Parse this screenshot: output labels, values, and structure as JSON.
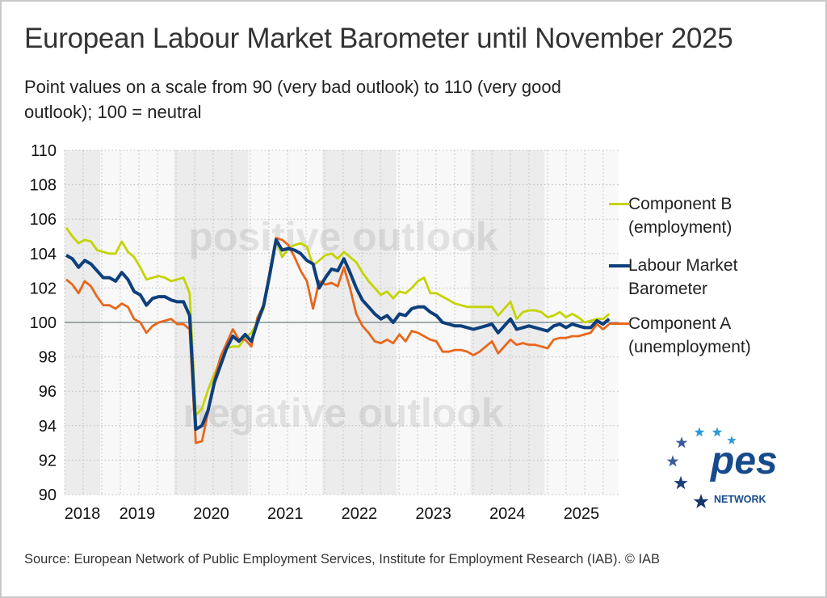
{
  "title": "European Labour Market Barometer until November 2025",
  "subtitle": "Point values on a scale from 90 (very bad outlook) to 110 (very good outlook); 100 = neutral",
  "source": "Source: European Network of Public Employment Services, Institute for Employment Research (IAB).  © IAB",
  "logo": {
    "text": "pes",
    "subtext": "NETWORK"
  },
  "chart_data": {
    "type": "line",
    "x_start": "2018-07",
    "x_end": "2025-11",
    "x_frequency": "monthly",
    "ylim": [
      90,
      110
    ],
    "yticks": [
      90,
      92,
      94,
      96,
      98,
      100,
      102,
      104,
      106,
      108,
      110
    ],
    "xtick_labels": [
      "2018",
      "2019",
      "2020",
      "2021",
      "2022",
      "2023",
      "2024",
      "2025"
    ],
    "reference_line": 100,
    "grid": true,
    "legend_position": "right",
    "annotations": {
      "positive": "positive outlook",
      "negative": "negative outlook"
    },
    "series": [
      {
        "name": "Component B (employment)",
        "legend_lines": [
          "Component B",
          "(employment)"
        ],
        "color": "#c3d400",
        "values": [
          105.5,
          105.0,
          104.6,
          104.8,
          104.7,
          104.2,
          104.1,
          104.0,
          104.0,
          104.7,
          104.1,
          103.8,
          103.2,
          102.5,
          102.6,
          102.7,
          102.6,
          102.4,
          102.5,
          102.6,
          101.7,
          94.6,
          95.0,
          96.1,
          97.0,
          97.8,
          98.5,
          98.6,
          98.6,
          99.1,
          99.4,
          100.0,
          100.8,
          102.8,
          104.8,
          103.8,
          104.3,
          104.5,
          104.6,
          104.4,
          103.3,
          103.6,
          103.9,
          104.0,
          103.7,
          104.1,
          103.8,
          103.5,
          102.9,
          102.4,
          102.0,
          101.6,
          101.8,
          101.4,
          101.8,
          101.7,
          102.0,
          102.4,
          102.6,
          101.7,
          101.7,
          101.5,
          101.3,
          101.1,
          101.0,
          100.9,
          100.9,
          100.9,
          100.9,
          100.9,
          100.4,
          100.8,
          101.2,
          100.2,
          100.6,
          100.7,
          100.7,
          100.6,
          100.3,
          100.4,
          100.6,
          100.3,
          100.5,
          100.3,
          100.0,
          100.1,
          100.2,
          100.2,
          100.5
        ]
      },
      {
        "name": "Labour Market Barometer",
        "legend_lines": [
          "Labour Market",
          "Barometer"
        ],
        "color": "#0d3f7c",
        "values": [
          103.9,
          103.7,
          103.2,
          103.6,
          103.4,
          103.0,
          102.6,
          102.6,
          102.4,
          102.9,
          102.5,
          101.8,
          101.6,
          101.0,
          101.4,
          101.5,
          101.5,
          101.3,
          101.2,
          101.2,
          100.4,
          93.8,
          94.0,
          94.9,
          96.5,
          97.5,
          98.5,
          99.2,
          98.9,
          99.3,
          98.9,
          100.0,
          101.0,
          102.8,
          104.8,
          104.2,
          104.3,
          104.2,
          104.0,
          103.6,
          103.4,
          102.0,
          102.6,
          103.1,
          103.0,
          103.7,
          102.9,
          102.0,
          101.3,
          100.9,
          100.5,
          100.2,
          100.4,
          100.0,
          100.5,
          100.4,
          100.8,
          100.9,
          100.9,
          100.6,
          100.4,
          100.0,
          99.9,
          99.8,
          99.8,
          99.7,
          99.6,
          99.7,
          99.8,
          99.9,
          99.4,
          99.8,
          100.2,
          99.6,
          99.7,
          99.8,
          99.7,
          99.6,
          99.5,
          99.8,
          99.9,
          99.7,
          99.9,
          99.8,
          99.7,
          99.7,
          100.1,
          99.9,
          100.2
        ]
      },
      {
        "name": "Component A (unemployment)",
        "legend_lines": [
          "Component A",
          "(unemployment)"
        ],
        "color": "#e8671c",
        "values": [
          102.5,
          102.2,
          101.7,
          102.4,
          102.1,
          101.5,
          101.0,
          101.0,
          100.8,
          101.1,
          100.9,
          100.2,
          100.0,
          99.4,
          99.8,
          100.0,
          100.1,
          100.2,
          99.9,
          99.9,
          99.6,
          93.0,
          93.1,
          94.8,
          96.7,
          98.0,
          98.8,
          99.6,
          99.0,
          99.0,
          98.6,
          100.3,
          101.0,
          103.0,
          104.9,
          104.8,
          104.5,
          103.8,
          103.0,
          102.4,
          100.8,
          102.4,
          102.2,
          102.3,
          102.1,
          103.2,
          102.0,
          100.5,
          99.8,
          99.4,
          98.9,
          98.8,
          99.0,
          98.8,
          99.3,
          98.9,
          99.5,
          99.4,
          99.2,
          99.0,
          98.9,
          98.3,
          98.3,
          98.4,
          98.4,
          98.3,
          98.1,
          98.3,
          98.6,
          98.9,
          98.2,
          98.6,
          99.0,
          98.7,
          98.8,
          98.7,
          98.7,
          98.6,
          98.5,
          99.0,
          99.1,
          99.1,
          99.2,
          99.2,
          99.3,
          99.4,
          99.9,
          99.6,
          99.9
        ]
      }
    ]
  }
}
